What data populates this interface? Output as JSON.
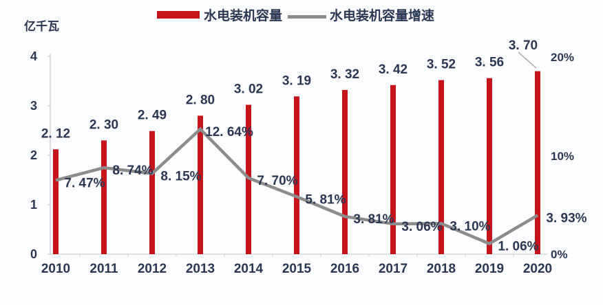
{
  "unit_label": "亿千瓦",
  "legend": {
    "bar_label": "水电装机容量",
    "line_label": "水电装机容量增速"
  },
  "axes": {
    "left_ticks": [
      "4",
      "3",
      "2",
      "1",
      "0"
    ],
    "right_ticks": [
      "20%",
      "10%",
      "0%"
    ]
  },
  "colors": {
    "bar": "#c5141a",
    "line": "#8c8c8c",
    "text": "#2b3752",
    "axis": "#ccd1d7"
  },
  "chart_data": {
    "type": "bar+line",
    "title": "",
    "categories": [
      "2010",
      "2011",
      "2012",
      "2013",
      "2014",
      "2015",
      "2016",
      "2017",
      "2018",
      "2019",
      "2020"
    ],
    "series": [
      {
        "name": "水电装机容量",
        "type": "bar",
        "unit": "亿千瓦",
        "values": [
          2.12,
          2.3,
          2.49,
          2.8,
          3.02,
          3.19,
          3.32,
          3.42,
          3.52,
          3.56,
          3.7
        ],
        "labels": [
          "2. 12",
          "2. 30",
          "2. 49",
          "2. 80",
          "3. 02",
          "3. 19",
          "3. 32",
          "3. 42",
          "3. 52",
          "3. 56",
          "3. 70"
        ]
      },
      {
        "name": "水电装机容量增速",
        "type": "line",
        "values_percent": [
          7.47,
          8.74,
          8.15,
          12.64,
          7.7,
          5.81,
          3.81,
          3.06,
          3.1,
          1.06,
          3.93
        ],
        "labels": [
          "7. 47%",
          "8. 74%",
          "8. 15%",
          "12. 64%",
          "7. 70%",
          "5. 81%",
          "3. 81%",
          "3. 06%",
          "3. 10%",
          "1. 06%",
          "3. 93%"
        ]
      }
    ],
    "left_axis": {
      "title": "亿千瓦",
      "min": 0,
      "max": 4
    },
    "right_axis": {
      "min": 0,
      "max": 20,
      "format": "percent"
    },
    "grid": false,
    "legend_position": "top"
  }
}
